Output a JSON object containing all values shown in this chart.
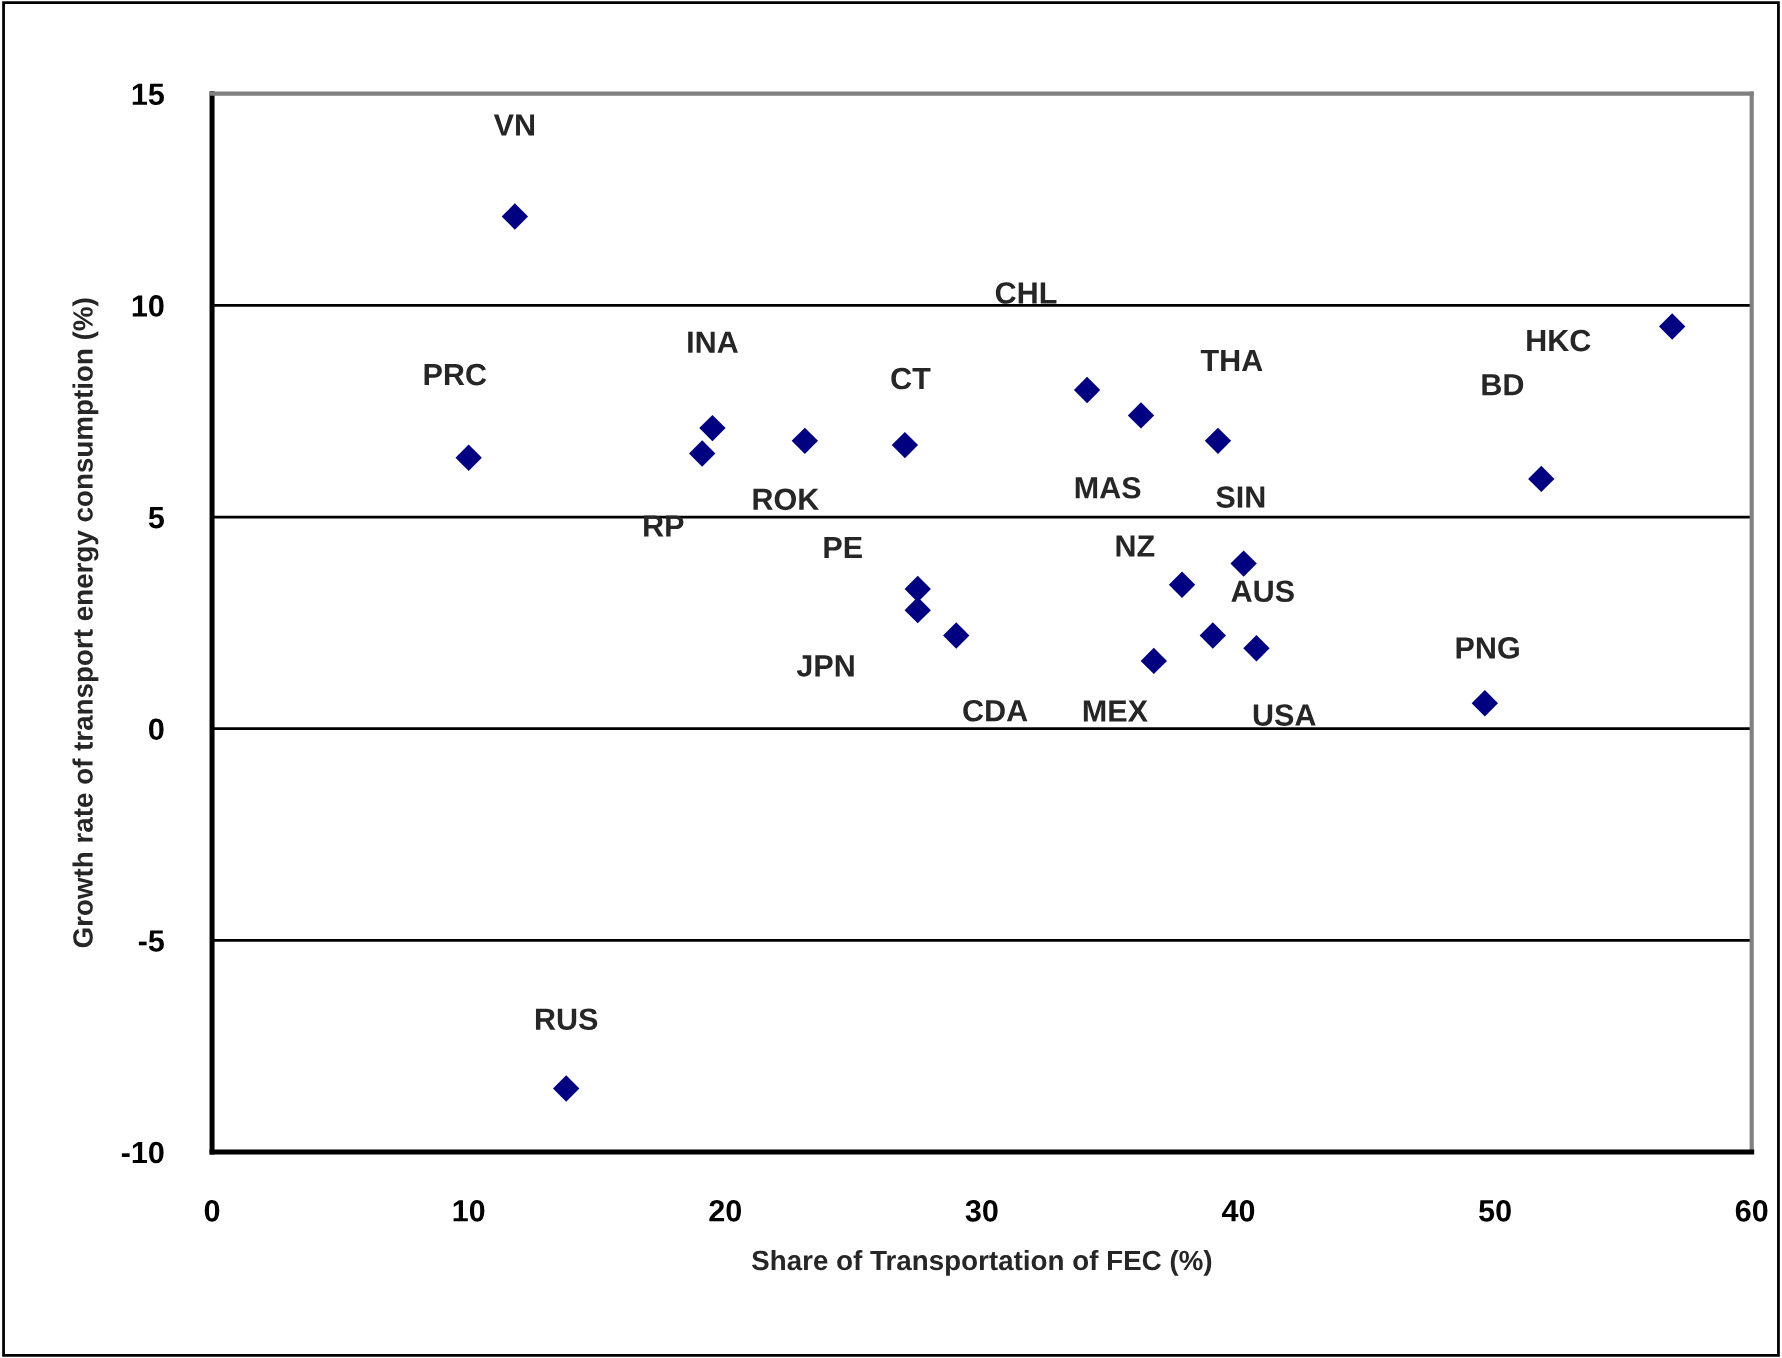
{
  "chart_data": {
    "type": "scatter",
    "xlabel": "Share of Transportation of FEC (%)",
    "ylabel": "Growth rate of transport energy consumption (%)",
    "series": [
      {
        "color": "#000080",
        "marker": "diamond",
        "x": [
          11.8,
          10.0,
          19.5,
          19.1,
          23.1,
          27.0,
          27.5,
          27.5,
          29.0,
          34.1,
          36.2,
          39.2,
          56.9,
          51.8,
          40.2,
          37.8,
          39.0,
          40.7,
          36.7,
          49.6,
          13.8
        ],
        "values": [
          12.1,
          6.4,
          7.1,
          6.5,
          6.8,
          6.7,
          3.3,
          2.8,
          2.2,
          8.0,
          7.4,
          6.8,
          9.5,
          5.9,
          3.9,
          3.4,
          2.2,
          1.9,
          1.6,
          0.6,
          -8.5
        ]
      }
    ],
    "annotations": [
      {
        "text": "VN",
        "x": 11.8,
        "y": 12.1
      },
      {
        "text": "PRC",
        "x": 10.0,
        "y": 6.4
      },
      {
        "text": "INA",
        "x": 19.5,
        "y": 7.1
      },
      {
        "text": "RP",
        "x": 19.1,
        "y": 6.5
      },
      {
        "text": "ROK",
        "x": 23.1,
        "y": 6.8
      },
      {
        "text": "CT",
        "x": 27.0,
        "y": 6.7
      },
      {
        "text": "PE",
        "x": 27.5,
        "y": 3.3
      },
      {
        "text": "JPN",
        "x": 27.5,
        "y": 2.8
      },
      {
        "text": "CDA",
        "x": 29.0,
        "y": 2.2
      },
      {
        "text": "CHL",
        "x": 34.1,
        "y": 8.0
      },
      {
        "text": "MAS",
        "x": 36.2,
        "y": 7.4
      },
      {
        "text": "THA",
        "x": 39.2,
        "y": 6.8
      },
      {
        "text": "HKC",
        "x": 56.9,
        "y": 9.5
      },
      {
        "text": "BD",
        "x": 51.8,
        "y": 5.9
      },
      {
        "text": "SIN",
        "x": 40.2,
        "y": 3.9
      },
      {
        "text": "NZ",
        "x": 37.8,
        "y": 3.4
      },
      {
        "text": "AUS",
        "x": 39.0,
        "y": 2.2
      },
      {
        "text": "USA",
        "x": 40.7,
        "y": 1.9
      },
      {
        "text": "MEX",
        "x": 36.7,
        "y": 1.6
      },
      {
        "text": "PNG",
        "x": 49.6,
        "y": 0.6
      },
      {
        "text": "RUS",
        "x": 13.8,
        "y": -8.5
      }
    ],
    "xlim": [
      0,
      60
    ],
    "xticks": [
      0,
      10,
      20,
      30,
      40,
      50,
      60
    ],
    "ylim": [
      -10,
      15
    ],
    "yticks": [
      -10,
      -5,
      0,
      5,
      10,
      15
    ],
    "grid": "y",
    "legend": false
  }
}
